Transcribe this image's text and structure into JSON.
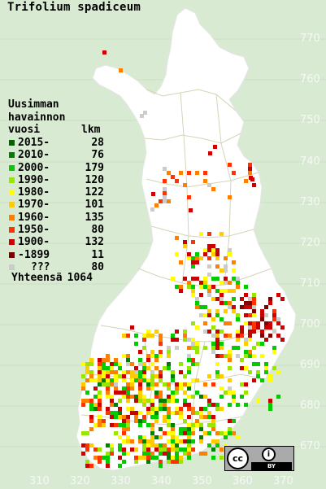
{
  "title": "Trifolium spadiceum",
  "legend": {
    "heading": [
      "Uusimman",
      "havainnon"
    ],
    "col_year": "vuosi",
    "col_count": "lkm",
    "rows": [
      {
        "label": "2015-",
        "count": "28",
        "color": "#006400"
      },
      {
        "label": "2010-",
        "count": "76",
        "color": "#008000"
      },
      {
        "label": "2000-",
        "count": "179",
        "color": "#00cc00"
      },
      {
        "label": "1990-",
        "count": "120",
        "color": "#99e600"
      },
      {
        "label": "1980-",
        "count": "122",
        "color": "#ffff00"
      },
      {
        "label": "1970-",
        "count": "101",
        "color": "#ffcc00"
      },
      {
        "label": "1960-",
        "count": "135",
        "color": "#ff8000"
      },
      {
        "label": "1950-",
        "count": "80",
        "color": "#ff3300"
      },
      {
        "label": "1900-",
        "count": "132",
        "color": "#cc0000"
      },
      {
        "label": "-1899",
        "count": "11",
        "color": "#800000"
      },
      {
        "label": "???",
        "count": "80",
        "color": "#cccccc"
      }
    ],
    "total_label": "Yhteensä",
    "total_count": "1064"
  },
  "axes": {
    "y_ticks": [
      "770",
      "760",
      "750",
      "740",
      "730",
      "720",
      "710",
      "700",
      "690",
      "680",
      "670"
    ],
    "x_ticks": [
      "310",
      "320",
      "330",
      "340",
      "350",
      "360",
      "370"
    ]
  },
  "colors": {
    "background": "#d9ead3",
    "land": "#ffffff",
    "borders": "#d4d4b8"
  },
  "license_badge": {
    "icon": "cc-by-icon",
    "cc": "cc",
    "by": "BY"
  }
}
